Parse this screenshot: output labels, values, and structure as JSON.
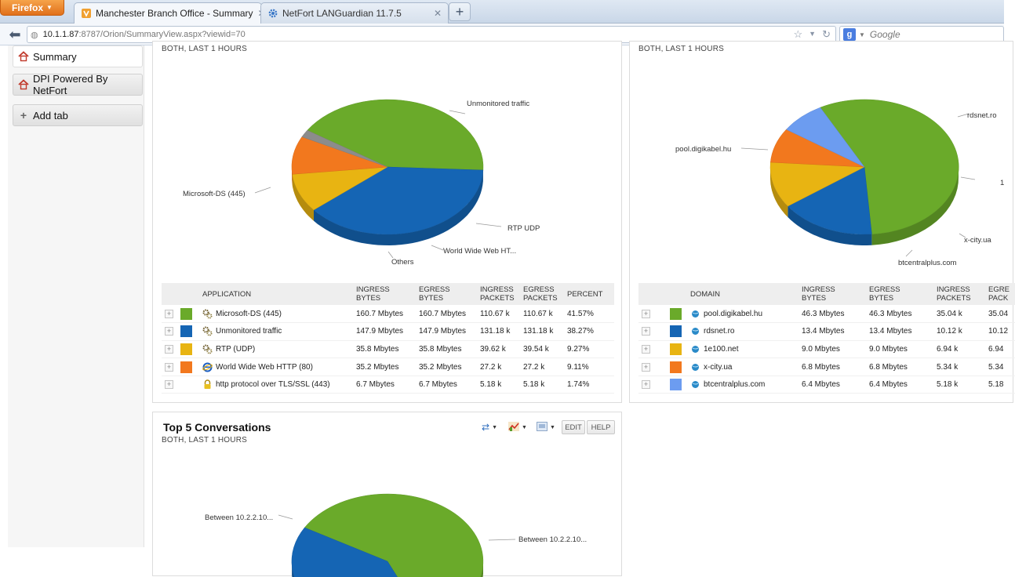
{
  "browser": {
    "menu_label": "Firefox",
    "tabs": [
      {
        "title": "Manchester Branch Office - Summary",
        "active": true
      },
      {
        "title": "NetFort LANGuardian 11.7.5",
        "active": false
      }
    ],
    "new_tab": "+",
    "url_host": "10.1.1.87",
    "url_path": ":8787/Orion/SummaryView.aspx?viewid=70",
    "search_placeholder": "Google"
  },
  "sidebar": {
    "items": [
      {
        "label": "Summary"
      },
      {
        "label": "DPI Powered By NetFort"
      },
      {
        "label": "Add tab"
      }
    ]
  },
  "apps_panel": {
    "subtitle": "BOTH, LAST 1 HOURS",
    "pie_labels": [
      "Unmonitored traffic",
      "Microsoft-DS (445)",
      "RTP UDP",
      "World Wide Web HT...",
      "Others"
    ],
    "columns": [
      "APPLICATION",
      "INGRESS\nBYTES",
      "EGRESS\nBYTES",
      "INGRESS\nPACKETS",
      "EGRESS\nPACKETS",
      "PERCENT"
    ],
    "rows": [
      {
        "name": "Microsoft-DS (445)",
        "color": "#6aaa2a",
        "icon": "gears-icon",
        "ingress_bytes": "160.7 Mbytes",
        "egress_bytes": "160.7 Mbytes",
        "ingress_packets": "110.67 k",
        "egress_packets": "110.67 k",
        "percent": "41.57%"
      },
      {
        "name": "Unmonitored traffic",
        "color": "#1565b4",
        "icon": "gears-icon",
        "ingress_bytes": "147.9 Mbytes",
        "egress_bytes": "147.9 Mbytes",
        "ingress_packets": "131.18 k",
        "egress_packets": "131.18 k",
        "percent": "38.27%"
      },
      {
        "name": "RTP (UDP)",
        "color": "#e8b412",
        "icon": "gears-icon",
        "ingress_bytes": "35.8 Mbytes",
        "egress_bytes": "35.8 Mbytes",
        "ingress_packets": "39.62 k",
        "egress_packets": "39.54 k",
        "percent": "9.27%"
      },
      {
        "name": "World Wide Web HTTP (80)",
        "color": "#f2781e",
        "icon": "ie-icon",
        "ingress_bytes": "35.2 Mbytes",
        "egress_bytes": "35.2 Mbytes",
        "ingress_packets": "27.2 k",
        "egress_packets": "27.2 k",
        "percent": "9.11%"
      },
      {
        "name": "http protocol over TLS/SSL (443)",
        "color": "",
        "icon": "lock-icon",
        "ingress_bytes": "6.7 Mbytes",
        "egress_bytes": "6.7 Mbytes",
        "ingress_packets": "5.18 k",
        "egress_packets": "5.18 k",
        "percent": "1.74%"
      }
    ]
  },
  "domains_panel": {
    "subtitle": "BOTH, LAST 1 HOURS",
    "pie_labels": [
      "rdsnet.ro",
      "pool.digikabel.hu",
      "1",
      "x-city.ua",
      "btcentralplus.com"
    ],
    "columns": [
      "DOMAIN",
      "INGRESS\nBYTES",
      "EGRESS\nBYTES",
      "INGRESS\nPACKETS",
      "EGRE\nPACK"
    ],
    "rows": [
      {
        "name": "pool.digikabel.hu",
        "color": "#6aaa2a",
        "ingress_bytes": "46.3 Mbytes",
        "egress_bytes": "46.3 Mbytes",
        "ingress_packets": "35.04 k",
        "egress_packets": "35.04"
      },
      {
        "name": "rdsnet.ro",
        "color": "#1565b4",
        "ingress_bytes": "13.4 Mbytes",
        "egress_bytes": "13.4 Mbytes",
        "ingress_packets": "10.12 k",
        "egress_packets": "10.12"
      },
      {
        "name": "1e100.net",
        "color": "#e8b412",
        "ingress_bytes": "9.0 Mbytes",
        "egress_bytes": "9.0 Mbytes",
        "ingress_packets": "6.94 k",
        "egress_packets": "6.94"
      },
      {
        "name": "x-city.ua",
        "color": "#f2781e",
        "ingress_bytes": "6.8 Mbytes",
        "egress_bytes": "6.8 Mbytes",
        "ingress_packets": "5.34 k",
        "egress_packets": "5.34"
      },
      {
        "name": "btcentralplus.com",
        "color": "#6c9cf0",
        "ingress_bytes": "6.4 Mbytes",
        "egress_bytes": "6.4 Mbytes",
        "ingress_packets": "5.18 k",
        "egress_packets": "5.18"
      }
    ]
  },
  "conversations_panel": {
    "title": "Top 5 Conversations",
    "subtitle": "BOTH, LAST 1 HOURS",
    "edit_label": "EDIT",
    "help_label": "HELP",
    "pie_labels": [
      "Between 10.2.2.10...",
      "Between 10.2.2.10..."
    ]
  },
  "colors": {
    "green": "#6aaa2a",
    "blue": "#1565b4",
    "yellow": "#e8b412",
    "orange": "#f2781e",
    "light_blue": "#6c9cf0",
    "grey": "#8c8c8c"
  },
  "chart_data": [
    {
      "type": "pie",
      "categories": [
        "Microsoft-DS (445)",
        "Unmonitored traffic",
        "RTP UDP",
        "World Wide Web HT...",
        "Others"
      ],
      "values": [
        41.57,
        38.27,
        9.27,
        9.11,
        1.78
      ],
      "colors": [
        "#6aaa2a",
        "#1565b4",
        "#e8b412",
        "#f2781e",
        "#8c8c8c"
      ]
    },
    {
      "type": "pie",
      "categories": [
        "pool.digikabel.hu",
        "rdsnet.ro",
        "1e100.net",
        "x-city.ua",
        "btcentralplus.com"
      ],
      "values": [
        46.3,
        13.4,
        9.0,
        6.8,
        6.4
      ],
      "colors": [
        "#6aaa2a",
        "#1565b4",
        "#e8b412",
        "#f2781e",
        "#6c9cf0"
      ]
    },
    {
      "type": "pie",
      "categories": [
        "Between 10.2.2.10...",
        "Between 10.2.2.10..."
      ],
      "values": [
        60,
        40
      ],
      "colors": [
        "#6aaa2a",
        "#1565b4"
      ]
    }
  ]
}
